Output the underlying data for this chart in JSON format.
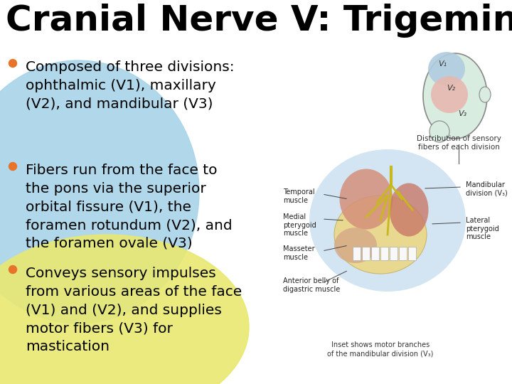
{
  "title": "Cranial Nerve V: Trigeminal",
  "title_fontsize": 36,
  "title_fontweight": "bold",
  "title_color": "#000000",
  "background_color": "#ffffff",
  "bullet_color": "#e8732a",
  "bullet_points": [
    "Composed of three divisions:\nophthalmic (V1), maxillary\n(V2), and mandibular (V3)",
    "Fibers run from the face to\nthe pons via the superior\norbital fissure (V1), the\nforamen rotundum (V2), and\nthe foramen ovale (V3)",
    "Conveys sensory impulses\nfrom various areas of the face\n(V1) and (V2), and supplies\nmotor fibers (V3) for\nmastication"
  ],
  "bullet_fontsize": 14.5,
  "text_color": "#000000",
  "bg_circle_color_top": "#a8d4e8",
  "bg_circle_color_bottom": "#e8e870",
  "figsize": [
    7.2,
    5.4
  ],
  "dpi": 100
}
